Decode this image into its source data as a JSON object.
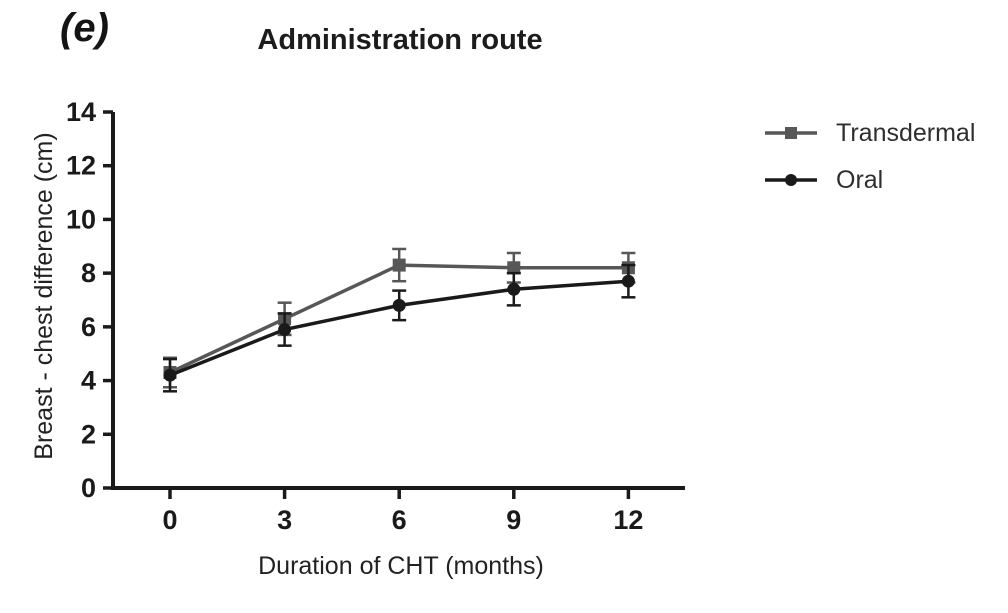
{
  "figure": {
    "panel_label": "(e)",
    "title": "Administration route"
  },
  "chart_data": {
    "type": "line",
    "title": "Administration route",
    "xlabel": "Duration of CHT (months)",
    "ylabel": "Breast - chest difference (cm)",
    "x": [
      0,
      3,
      6,
      9,
      12
    ],
    "xtick_labels": [
      "0",
      "3",
      "6",
      "9",
      "12"
    ],
    "ylim": [
      0,
      14
    ],
    "ytick_step": 2,
    "ytick_labels": [
      "0",
      "2",
      "4",
      "6",
      "8",
      "10",
      "12",
      "14"
    ],
    "grid": false,
    "legend_position": "top-right",
    "axis_color": "#1a1a1a",
    "error_bars": "symmetric, cap width ~14px",
    "series": [
      {
        "name": "Transdermal",
        "marker": "square",
        "color": "#575757",
        "values": [
          4.3,
          6.3,
          8.3,
          8.2,
          8.2
        ],
        "errors": [
          0.55,
          0.6,
          0.6,
          0.55,
          0.55
        ]
      },
      {
        "name": "Oral",
        "marker": "circle",
        "color": "#1a1a1a",
        "values": [
          4.2,
          5.9,
          6.8,
          7.4,
          7.7
        ],
        "errors": [
          0.6,
          0.6,
          0.55,
          0.6,
          0.6
        ]
      }
    ]
  }
}
